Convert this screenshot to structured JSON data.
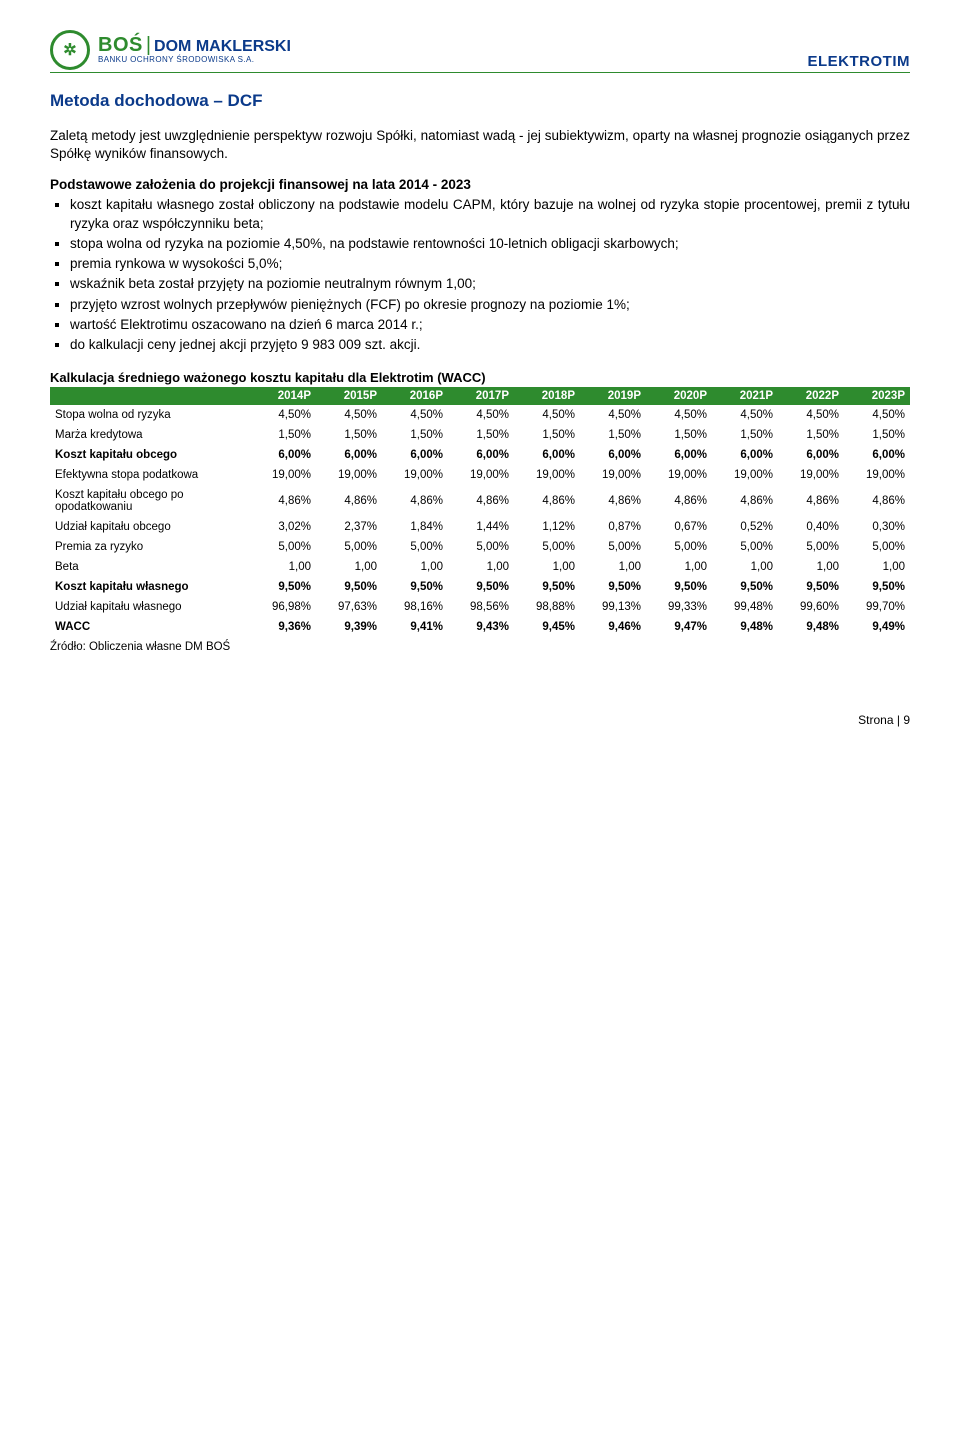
{
  "header": {
    "logo_bos": "BOŚ",
    "logo_dm": "DOM MAKLERSKI",
    "logo_sub": "BANKU OCHRONY ŚRODOWISKA S.A.",
    "brand": "ELEKTROTIM"
  },
  "section_title": "Metoda dochodowa – DCF",
  "intro": "Zaletą metody jest uwzględnienie perspektyw rozwoju Spółki, natomiast wadą - jej subiektywizm, oparty na własnej prognozie osiąganych przez Spółkę wyników finansowych.",
  "assumptions_title": "Podstawowe założenia do projekcji finansowej na lata 2014 - 2023",
  "assumptions": [
    "koszt kapitału własnego został obliczony na podstawie modelu CAPM, który bazuje na wolnej od ryzyka stopie procentowej, premii z tytułu ryzyka oraz współczynniku beta;",
    "stopa wolna od ryzyka na poziomie 4,50%, na podstawie rentowności 10-letnich obligacji skarbowych;",
    "premia rynkowa w wysokości 5,0%;",
    "wskaźnik beta został przyjęty na poziomie neutralnym równym 1,00;",
    "przyjęto wzrost wolnych przepływów pieniężnych (FCF) po okresie prognozy na poziomie 1%;",
    "wartość Elektrotimu oszacowano na dzień 6 marca 2014 r.;",
    "do kalkulacji ceny jednej akcji przyjęto 9 983 009 szt. akcji."
  ],
  "table": {
    "title": "Kalkulacja średniego ważonego kosztu kapitału dla Elektrotim (WACC)",
    "header_bg": "#2e8b2e",
    "header_color": "#ffffff",
    "font_size": 11.5,
    "columns": [
      "",
      "2014P",
      "2015P",
      "2016P",
      "2017P",
      "2018P",
      "2019P",
      "2020P",
      "2021P",
      "2022P",
      "2023P"
    ],
    "rows": [
      {
        "label": "Stopa wolna od ryzyka",
        "vals": [
          "4,50%",
          "4,50%",
          "4,50%",
          "4,50%",
          "4,50%",
          "4,50%",
          "4,50%",
          "4,50%",
          "4,50%",
          "4,50%"
        ],
        "bold": false
      },
      {
        "label": "Marża kredytowa",
        "vals": [
          "1,50%",
          "1,50%",
          "1,50%",
          "1,50%",
          "1,50%",
          "1,50%",
          "1,50%",
          "1,50%",
          "1,50%",
          "1,50%"
        ],
        "bold": false
      },
      {
        "label": "Koszt kapitału obcego",
        "vals": [
          "6,00%",
          "6,00%",
          "6,00%",
          "6,00%",
          "6,00%",
          "6,00%",
          "6,00%",
          "6,00%",
          "6,00%",
          "6,00%"
        ],
        "bold": true
      },
      {
        "label": "Efektywna stopa podatkowa",
        "vals": [
          "19,00%",
          "19,00%",
          "19,00%",
          "19,00%",
          "19,00%",
          "19,00%",
          "19,00%",
          "19,00%",
          "19,00%",
          "19,00%"
        ],
        "bold": false
      },
      {
        "label": "Koszt kapitału obcego po opodatkowaniu",
        "vals": [
          "4,86%",
          "4,86%",
          "4,86%",
          "4,86%",
          "4,86%",
          "4,86%",
          "4,86%",
          "4,86%",
          "4,86%",
          "4,86%"
        ],
        "bold": false
      },
      {
        "label": "Udział kapitału obcego",
        "vals": [
          "3,02%",
          "2,37%",
          "1,84%",
          "1,44%",
          "1,12%",
          "0,87%",
          "0,67%",
          "0,52%",
          "0,40%",
          "0,30%"
        ],
        "bold": false
      },
      {
        "label": "Premia za ryzyko",
        "vals": [
          "5,00%",
          "5,00%",
          "5,00%",
          "5,00%",
          "5,00%",
          "5,00%",
          "5,00%",
          "5,00%",
          "5,00%",
          "5,00%"
        ],
        "bold": false
      },
      {
        "label": "Beta",
        "vals": [
          "1,00",
          "1,00",
          "1,00",
          "1,00",
          "1,00",
          "1,00",
          "1,00",
          "1,00",
          "1,00",
          "1,00"
        ],
        "bold": false
      },
      {
        "label": "Koszt kapitału własnego",
        "vals": [
          "9,50%",
          "9,50%",
          "9,50%",
          "9,50%",
          "9,50%",
          "9,50%",
          "9,50%",
          "9,50%",
          "9,50%",
          "9,50%"
        ],
        "bold": true
      },
      {
        "label": "Udział kapitału własnego",
        "vals": [
          "96,98%",
          "97,63%",
          "98,16%",
          "98,56%",
          "98,88%",
          "99,13%",
          "99,33%",
          "99,48%",
          "99,60%",
          "99,70%"
        ],
        "bold": false
      },
      {
        "label": "WACC",
        "vals": [
          "9,36%",
          "9,39%",
          "9,41%",
          "9,43%",
          "9,45%",
          "9,46%",
          "9,47%",
          "9,48%",
          "9,48%",
          "9,49%"
        ],
        "bold": true
      }
    ],
    "source": "Źródło: Obliczenia własne DM BOŚ"
  },
  "footer": "Strona | 9"
}
